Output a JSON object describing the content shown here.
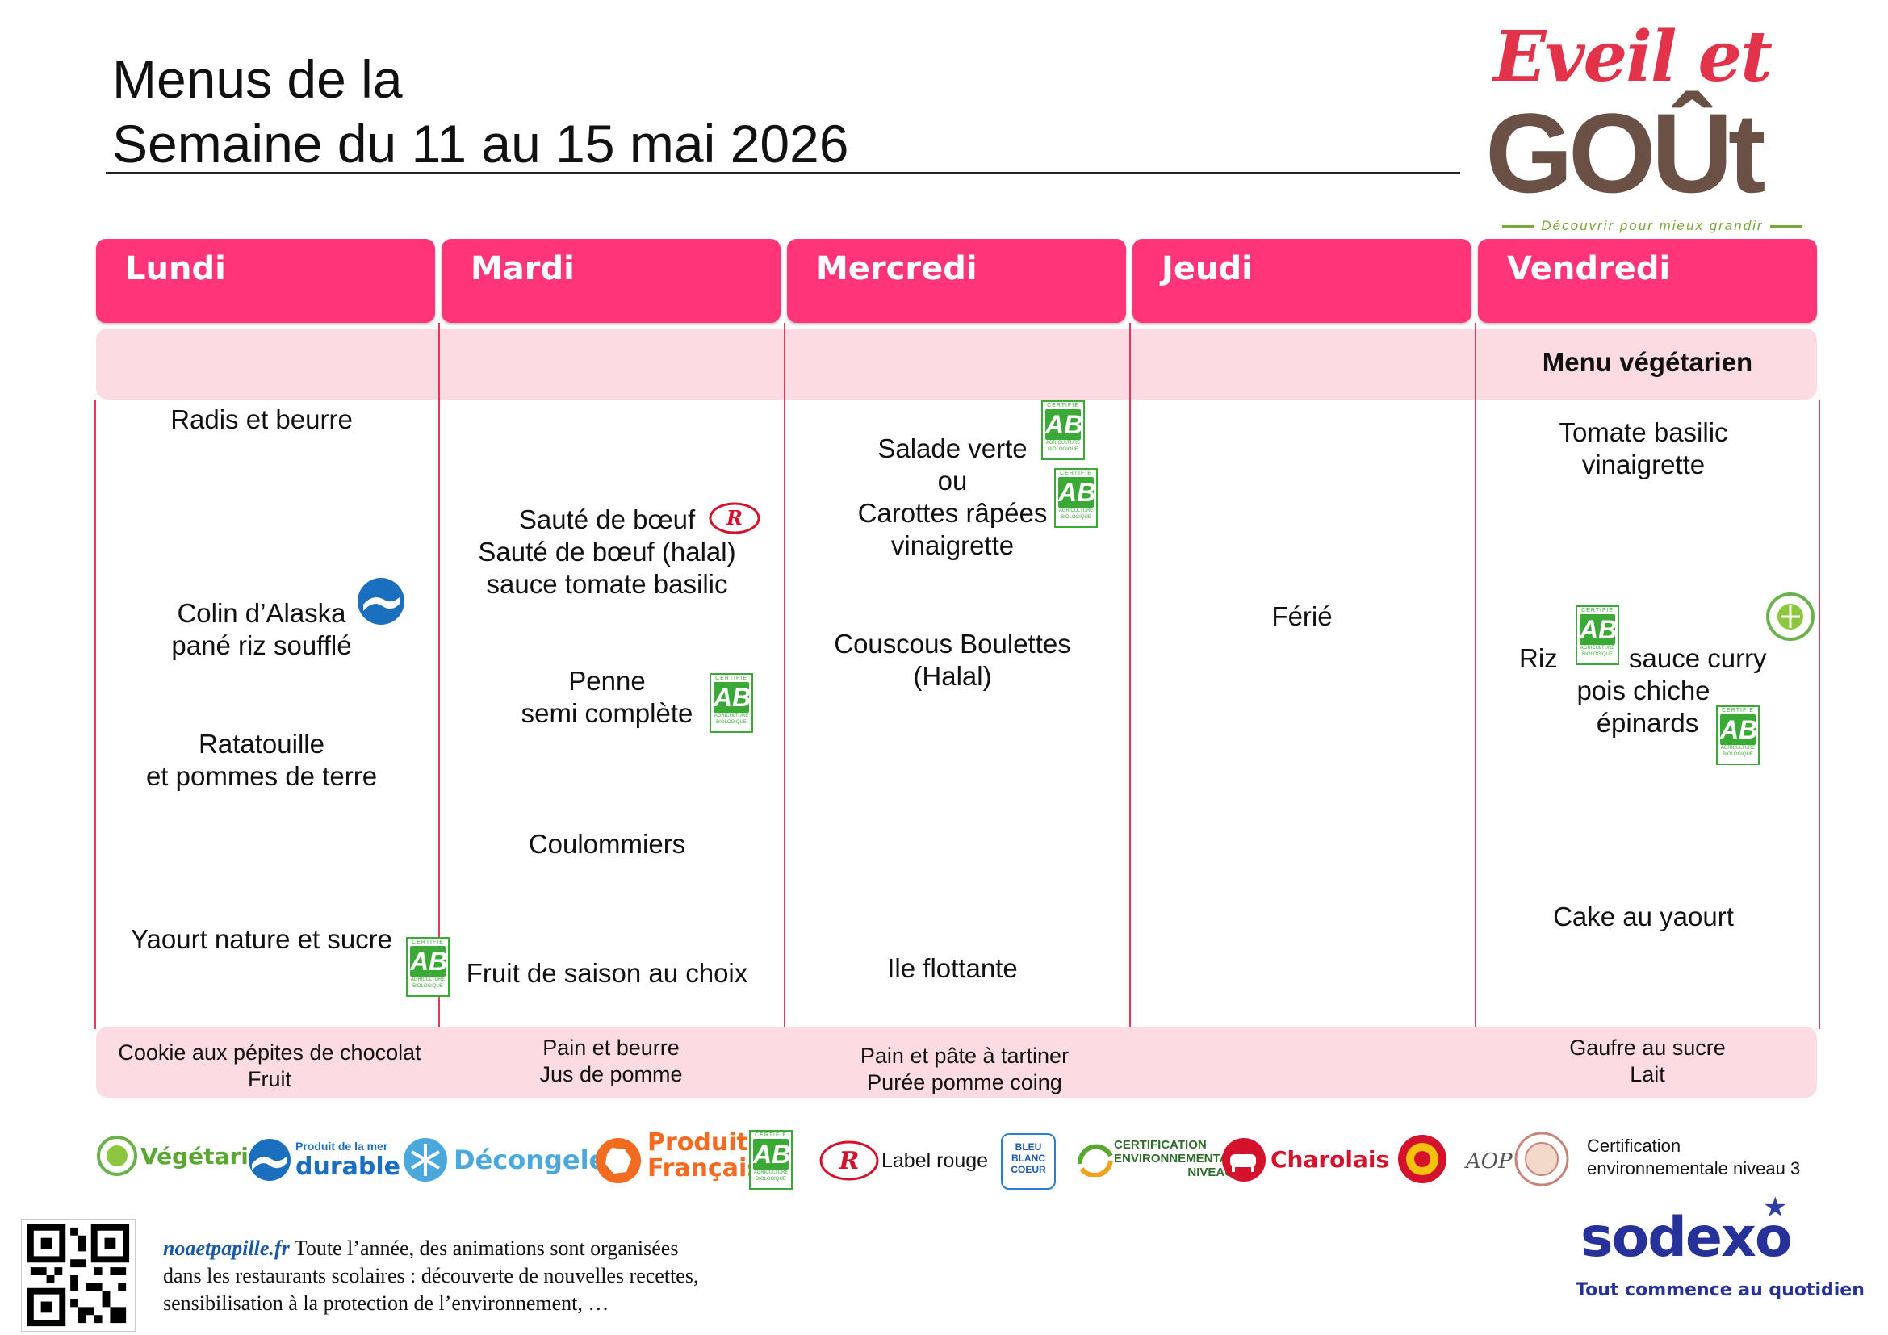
{
  "title": {
    "line1": "Menus de la",
    "line2": "Semaine du 11 au 15 mai 2026"
  },
  "logo": {
    "top": "Eveil et",
    "bottom": "GOÛt",
    "tagline": "Découvrir pour mieux grandir"
  },
  "days": [
    "Lundi",
    "Mardi",
    "Mercredi",
    "Jeudi",
    "Vendredi"
  ],
  "special": {
    "vendredi_label": "Menu végétarien"
  },
  "menu": {
    "lundi": {
      "starter": "Radis et beurre",
      "main": [
        "Colin d’Alaska",
        "pané riz soufflé"
      ],
      "side": [
        "Ratatouille",
        "et pommes de terre"
      ],
      "dessert": "Yaourt nature et sucre"
    },
    "mardi": {
      "main": [
        "Sauté de bœuf",
        "Sauté de bœuf (halal)",
        "sauce tomate basilic"
      ],
      "side": [
        "Penne",
        "semi complète"
      ],
      "cheese": "Coulommiers",
      "dessert": "Fruit de saison au choix"
    },
    "mercredi": {
      "starter": [
        "Salade verte",
        "ou",
        "Carottes râpées",
        "vinaigrette"
      ],
      "main": [
        "Couscous Boulettes",
        "(Halal)"
      ],
      "dessert": "Ile flottante"
    },
    "jeudi": {
      "main": "Férié"
    },
    "vendredi": {
      "starter": [
        "Tomate basilic",
        "vinaigrette"
      ],
      "main_a": "Riz",
      "main_b": "sauce curry",
      "main_c": "pois chiche",
      "main_d": "épinards",
      "dessert": "Cake au yaourt"
    }
  },
  "snacks": {
    "lundi": [
      "Cookie aux pépites de chocolat",
      "Fruit"
    ],
    "mardi": [
      "Pain et beurre",
      "Jus de pomme"
    ],
    "mercredi": [
      "Pain et pâte à tartiner",
      "Purée pomme coing"
    ],
    "jeudi": [],
    "vendredi": [
      "Gaufre au sucre",
      "Lait"
    ]
  },
  "labels": {
    "ab_top": "CERTIFIÉ",
    "ab_mid": "AB",
    "ab_bottom": "AGRICULTURE BIOLOGIQUE"
  },
  "legend": {
    "vegetarien": "Végétarien",
    "mer_small": "Produit de la mer",
    "mer_big": "durable",
    "decongele": "Décongelé",
    "produit": "Produit",
    "francais": "Français",
    "label_rouge": "Label rouge",
    "bbc": "BLEU BLANC COEUR",
    "cert_env": "CERTIFICATION",
    "cert_env2": "ENVIRONNEMENTALE",
    "cert_env3": "NIVEAU 2",
    "charolais": "Charolais",
    "aop": "AOP",
    "cert3_line1": "Certification",
    "cert3_line2": "environnementale niveau 3"
  },
  "footer": {
    "link": "noaetpapille.fr",
    "line1": " Toute l’année, des animations sont organisées",
    "line2": "dans les restaurants scolaires : découverte de nouvelles recettes,",
    "line3": "sensibilisation à la protection de l’environnement, …"
  },
  "sodexo": {
    "name": "sodexo",
    "slogan": "Tout commence au quotidien"
  },
  "colors": {
    "header_pink": "#ff3479",
    "band_pink": "#fddbe3",
    "bio_green": "#3aa935",
    "sodexo_blue": "#26329a"
  }
}
